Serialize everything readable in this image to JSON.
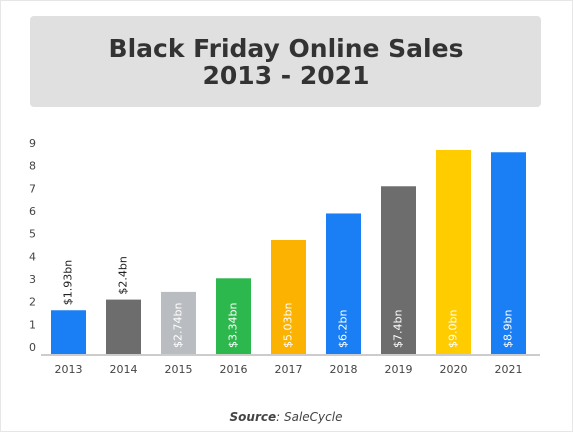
{
  "chart_data": {
    "type": "bar",
    "title": [
      "Black Friday Online Sales",
      "2013 - 2021"
    ],
    "categories": [
      "2013",
      "2014",
      "2015",
      "2016",
      "2017",
      "2018",
      "2019",
      "2020",
      "2021"
    ],
    "values": [
      1.93,
      2.4,
      2.74,
      3.34,
      5.03,
      6.2,
      7.4,
      9.0,
      8.9
    ],
    "value_labels": [
      "$1.93bn",
      "$2.4bn",
      "$2.74bn",
      "$3.34bn",
      "$5.03bn",
      "$6.2bn",
      "$7.4bn",
      "$9.0bn",
      "$8.9bn"
    ],
    "colors": [
      "#1a7ef5",
      "#6d6d6d",
      "#b9bcc0",
      "#2db84e",
      "#fbb200",
      "#1a7ef5",
      "#6d6d6d",
      "#ffcc00",
      "#1a7ef5"
    ],
    "ylim": [
      0,
      9
    ],
    "yticks": [
      0,
      1,
      2,
      3,
      4,
      5,
      6,
      7,
      8,
      9
    ],
    "grid": false,
    "source_label": "Source",
    "source_text": ": SaleCycle"
  }
}
